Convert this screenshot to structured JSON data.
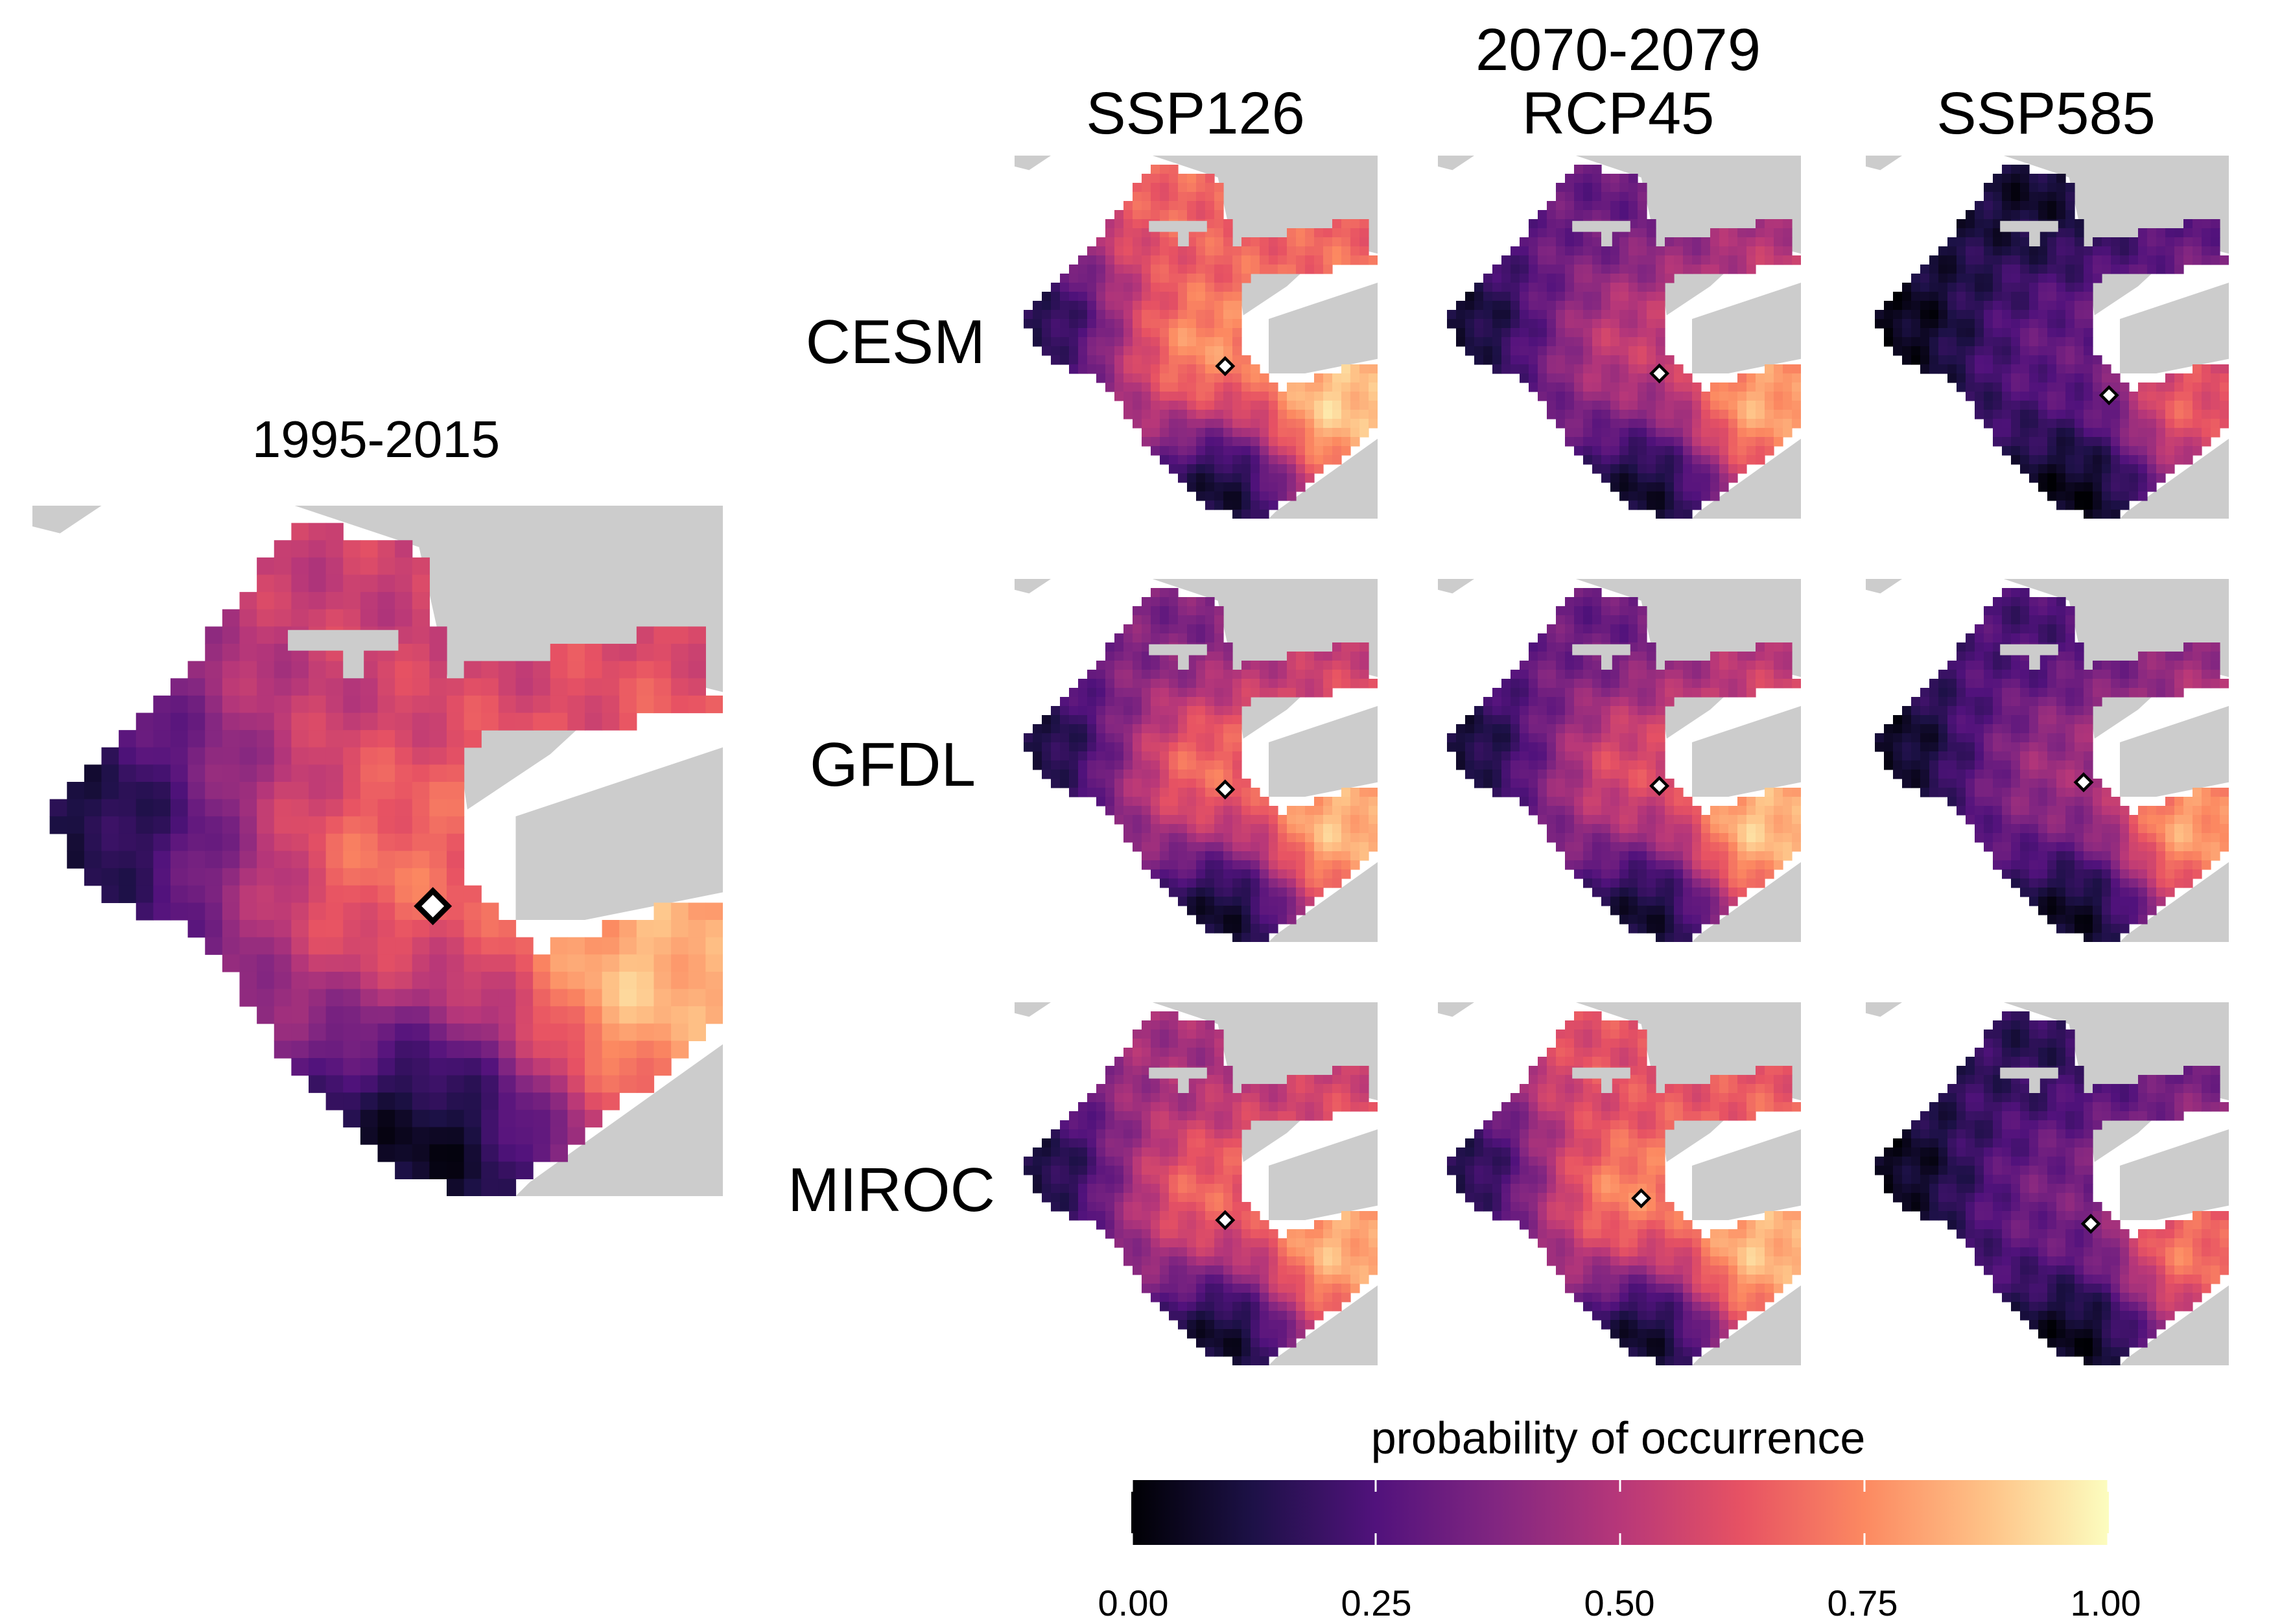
{
  "baseline": {
    "title": "1995-2015"
  },
  "projection": {
    "period": "2070-2079",
    "scenarios": [
      "SSP126",
      "RCP45",
      "SSP585"
    ],
    "models": [
      "CESM",
      "GFDL",
      "MIROC"
    ]
  },
  "legend": {
    "title": "probability of occurrence",
    "ticks": [
      "0.00",
      "0.25",
      "0.50",
      "0.75",
      "1.00"
    ],
    "colormap": "magma",
    "colors": [
      "#000004",
      "#1d1147",
      "#51127c",
      "#822681",
      "#b73779",
      "#e75263",
      "#fc8961",
      "#fec287",
      "#fcfdbf"
    ]
  },
  "colors": {
    "land": "#cccccc",
    "marker_fill": "#ffffff",
    "marker_stroke": "#000000"
  },
  "panels": {
    "baseline": {
      "marker": [
        0.58,
        0.58
      ],
      "levels": {
        "north": 0.55,
        "east": 0.9,
        "west": 0.1,
        "south": 0.02,
        "core": 0.72
      }
    },
    "grid": [
      [
        {
          "marker": [
            0.58,
            0.58
          ],
          "levels": {
            "north": 0.68,
            "east": 0.93,
            "west": 0.12,
            "south": 0.05,
            "core": 0.8
          }
        },
        {
          "marker": [
            0.61,
            0.6
          ],
          "levels": {
            "north": 0.3,
            "east": 0.86,
            "west": 0.08,
            "south": 0.05,
            "core": 0.55
          }
        },
        {
          "marker": [
            0.67,
            0.66
          ],
          "levels": {
            "north": 0.07,
            "east": 0.68,
            "west": 0.03,
            "south": 0.02,
            "core": 0.3
          }
        }
      ],
      [
        {
          "marker": [
            0.58,
            0.58
          ],
          "levels": {
            "north": 0.35,
            "east": 0.9,
            "west": 0.1,
            "south": 0.04,
            "core": 0.72
          }
        },
        {
          "marker": [
            0.61,
            0.57
          ],
          "levels": {
            "north": 0.3,
            "east": 0.92,
            "west": 0.09,
            "south": 0.05,
            "core": 0.62
          }
        },
        {
          "marker": [
            0.6,
            0.56
          ],
          "levels": {
            "north": 0.22,
            "east": 0.85,
            "west": 0.05,
            "south": 0.03,
            "core": 0.45
          }
        }
      ],
      [
        {
          "marker": [
            0.58,
            0.6
          ],
          "levels": {
            "north": 0.45,
            "east": 0.88,
            "west": 0.1,
            "south": 0.04,
            "core": 0.7
          }
        },
        {
          "marker": [
            0.56,
            0.54
          ],
          "levels": {
            "north": 0.62,
            "east": 0.9,
            "west": 0.12,
            "south": 0.04,
            "core": 0.78
          }
        },
        {
          "marker": [
            0.62,
            0.61
          ],
          "levels": {
            "north": 0.15,
            "east": 0.75,
            "west": 0.04,
            "south": 0.02,
            "core": 0.35
          }
        }
      ]
    ]
  }
}
